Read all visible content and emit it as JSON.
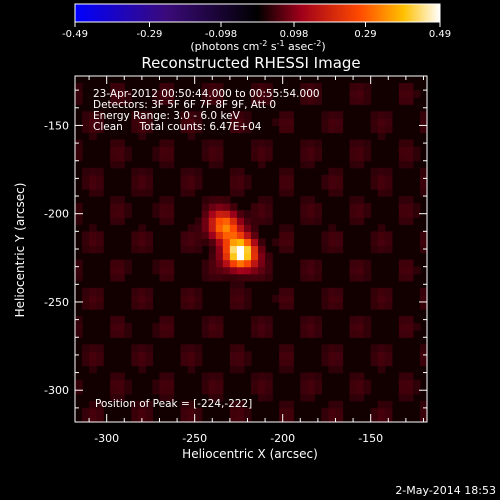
{
  "chart_data": {
    "type": "heatmap",
    "title": "Reconstructed RHESSI Image",
    "xlabel": "Heliocentric X (arcsec)",
    "ylabel": "Heliocentric Y (arcsec)",
    "xlim": [
      -318,
      -118
    ],
    "ylim": [
      -318,
      -122
    ],
    "x_ticks": [
      -300,
      -250,
      -200,
      -150
    ],
    "y_ticks": [
      -300,
      -250,
      -200,
      -150
    ],
    "colorbar": {
      "min": -0.49,
      "max": 0.49,
      "ticks": [
        "-0.49",
        "-0.29",
        "-0.098",
        "0.098",
        "0.29",
        "0.49"
      ],
      "label_prefix": "(photons cm",
      "label_sup1": "-2",
      "label_mid": " s",
      "label_sup2": "-1",
      "label_mid2": " asec",
      "label_sup3": "-2",
      "label_suffix": ")"
    },
    "sources": [
      {
        "x": -224,
        "y": -222,
        "sigma": 6,
        "peak": 0.49
      },
      {
        "x": -233,
        "y": -207,
        "sigma": 6,
        "peak": 0.3
      }
    ],
    "annotations": {
      "line1": "23-Apr-2012 00:50:44.000 to 00:55:54.000",
      "line2": "Detectors: 3F 5F 6F 7F 8F 9F, Att 0",
      "line3": "Energy Range: 3.0 - 6.0 keV",
      "line4": "Clean     Total counts: 6.47E+04",
      "peak": "Position of Peak = [-224,-222]"
    },
    "footer_timestamp": "2-May-2014 18:53"
  }
}
